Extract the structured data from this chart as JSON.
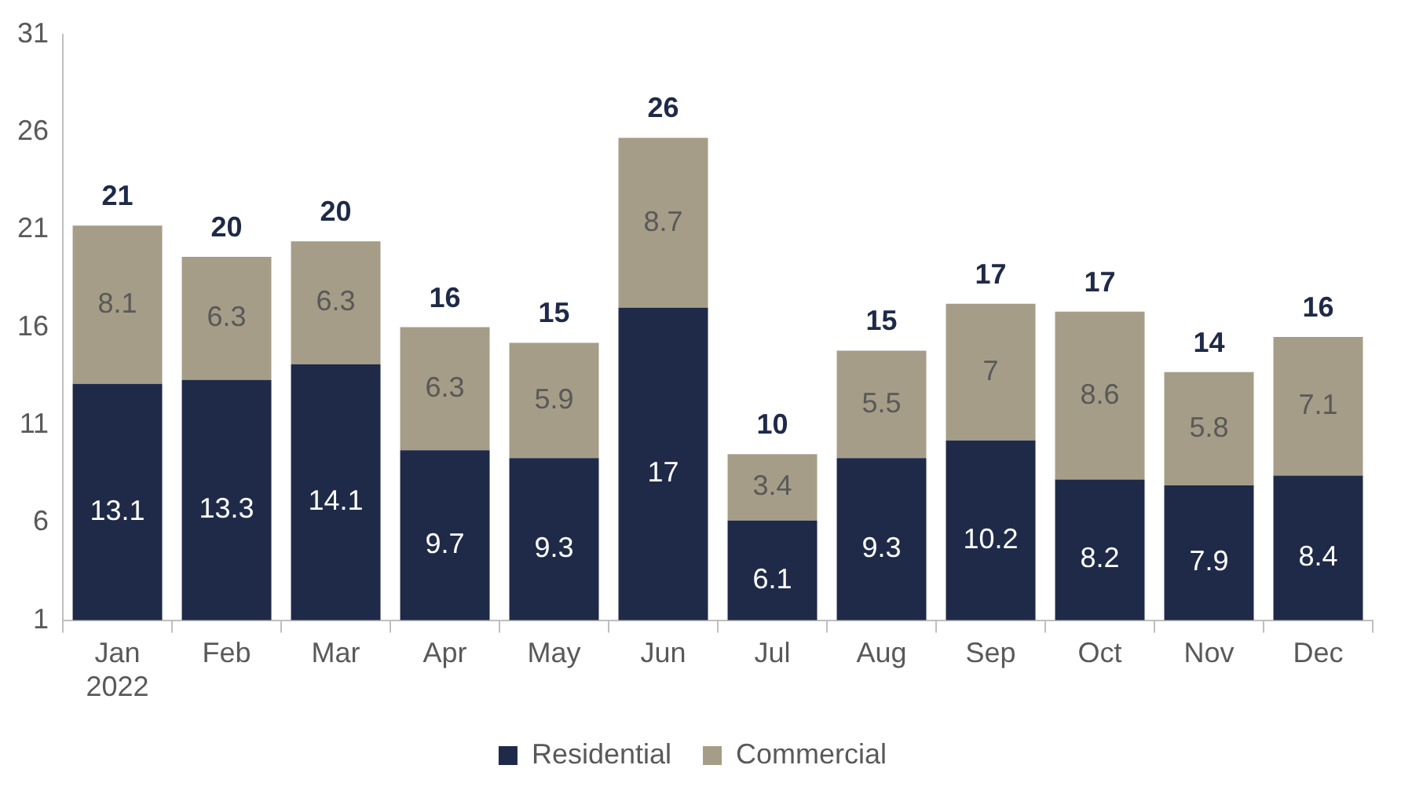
{
  "chart_data": {
    "type": "bar",
    "stacked": true,
    "categories": [
      "Jan 2022",
      "Feb",
      "Mar",
      "Apr",
      "May",
      "Jun",
      "Jul",
      "Aug",
      "Sep",
      "Oct",
      "Nov",
      "Dec"
    ],
    "series": [
      {
        "name": "Residential",
        "color": "#1f2a48",
        "values": [
          13.1,
          13.3,
          14.1,
          9.7,
          9.3,
          17,
          6.1,
          9.3,
          10.2,
          8.2,
          7.9,
          8.4
        ]
      },
      {
        "name": "Commercial",
        "color": "#a59d87",
        "values": [
          8.1,
          6.3,
          6.3,
          6.3,
          5.9,
          8.7,
          3.4,
          5.5,
          7,
          8.6,
          5.8,
          7.1
        ]
      }
    ],
    "totals": [
      "21",
      "20",
      "20",
      "16",
      "15",
      "26",
      "10",
      "15",
      "17",
      "17",
      "14",
      "16"
    ],
    "data_labels": true,
    "ylim": [
      1,
      31
    ],
    "yticks": [
      1,
      6,
      11,
      16,
      21,
      26,
      31
    ],
    "grid": false,
    "legend": "bottom"
  }
}
